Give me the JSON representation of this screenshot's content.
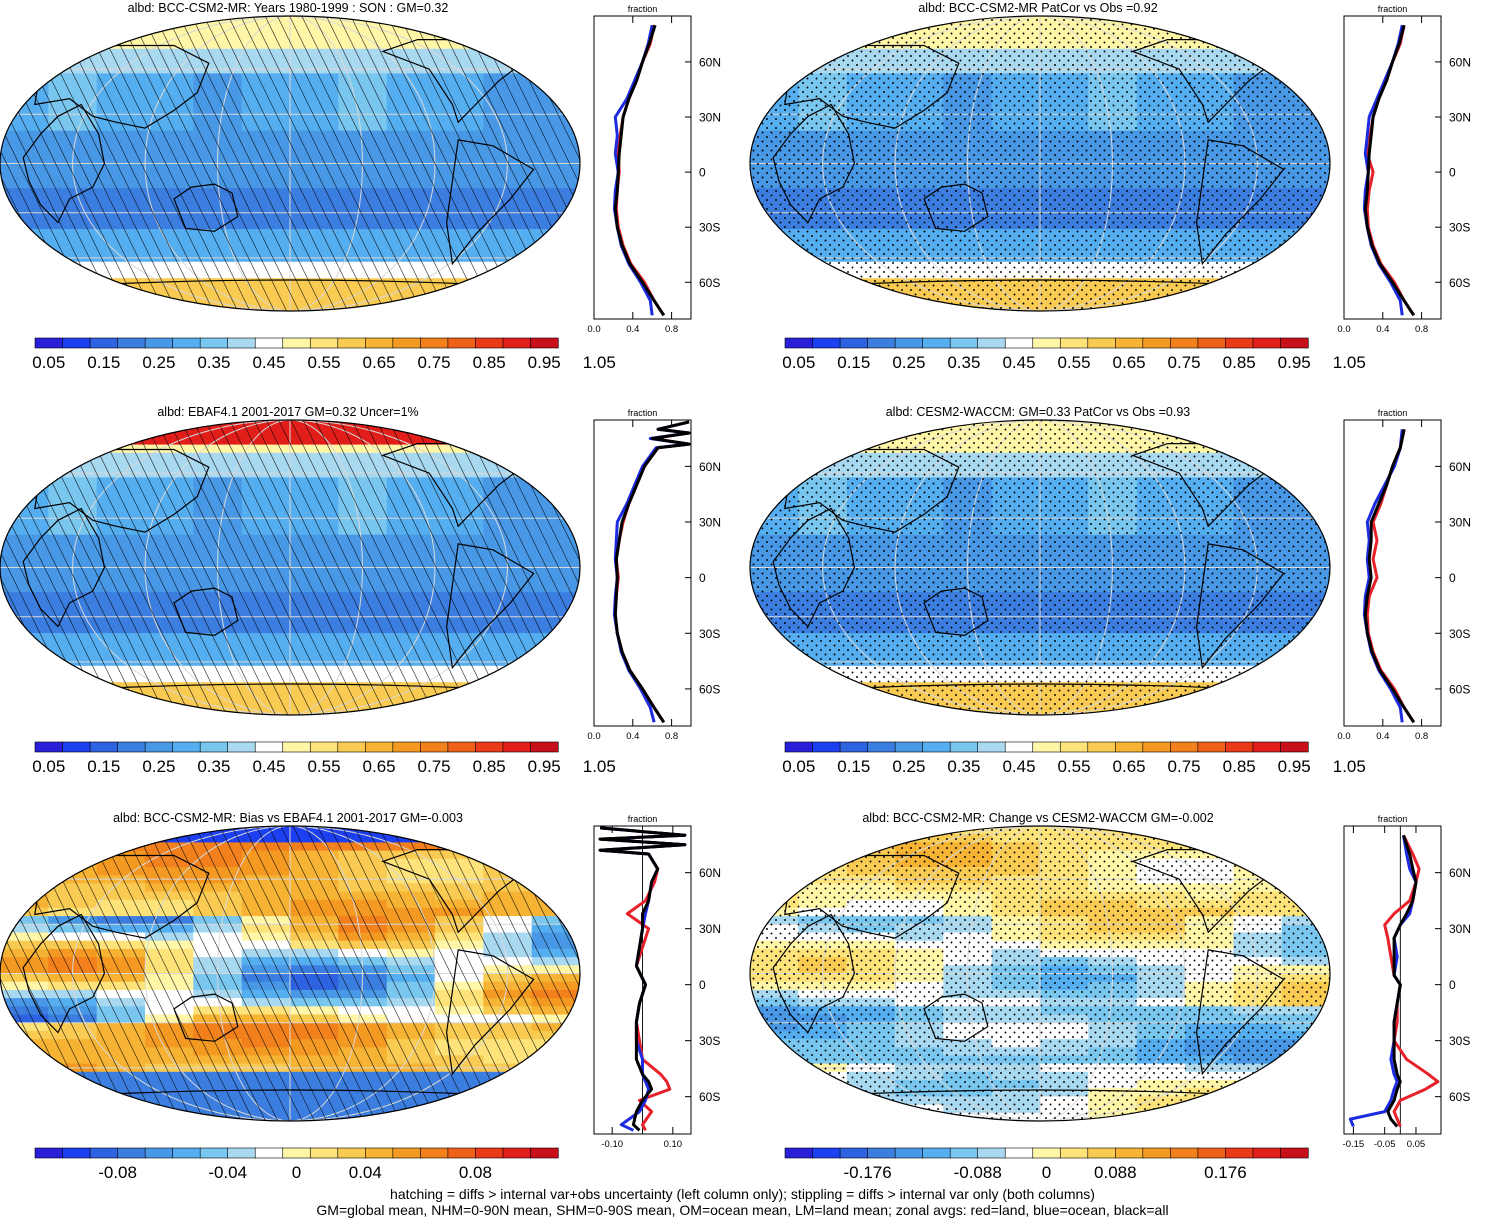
{
  "colors": {
    "land_line": "#e8202a",
    "ocean_line": "#1d2be0",
    "all_line": "#000000",
    "grid_line": "#d8d8d8",
    "map_palette": [
      "#2a1fd8",
      "#1c3ff0",
      "#2d62e0",
      "#3b7ee0",
      "#4898e6",
      "#55aef0",
      "#79c6ef",
      "#a9d8f1",
      "#ffffff",
      "#fff6a8",
      "#fde37a",
      "#f9cb52",
      "#f6b334",
      "#f49a22",
      "#f2801c",
      "#ef6018",
      "#ea3a18",
      "#e21e1a",
      "#c8101a"
    ]
  },
  "footer": {
    "line1": "hatching = diffs > internal var+obs uncertainty (left column only); stippling = diffs > internal var only (both columns)",
    "line2": "GM=global mean, NHM=0-90N mean, SHM=0-90S mean, OM=ocean mean, LM=land mean; zonal avgs: red=land, blue=ocean, black=all"
  },
  "chart_data": [
    {
      "type": "heatmap",
      "title": "albd: BCC-CSM2-MR: Years 1980-1999 : SON : GM=0.32",
      "overlay": "hatching",
      "colorbar_labels": [
        "0.05",
        "0.15",
        "0.25",
        "0.35",
        "0.45",
        "0.55",
        "0.65",
        "0.75",
        "0.85",
        "0.95",
        "1.05"
      ],
      "colorbar_range": [
        0.0,
        1.1
      ],
      "zonal": {
        "axis_title": "fraction",
        "xlim": [
          0.0,
          1.0
        ],
        "xticks": [
          0.0,
          0.4,
          0.8
        ],
        "xtick_labels": [
          "0.0",
          "0.4",
          "0.8"
        ],
        "ylim": [
          -80,
          85
        ],
        "yticks": [
          60,
          30,
          0,
          -30,
          -60
        ],
        "ytick_labels": [
          "60N",
          "30N",
          "0",
          "30S",
          "60S"
        ],
        "lat": [
          80,
          70,
          60,
          50,
          40,
          30,
          20,
          10,
          0,
          -10,
          -20,
          -30,
          -40,
          -50,
          -60,
          -70,
          -78
        ],
        "series": [
          {
            "values": [
              0.62,
              0.58,
              0.5,
              0.44,
              0.36,
              0.3,
              0.27,
              0.25,
              0.26,
              0.24,
              0.23,
              0.25,
              0.3,
              0.38,
              0.52,
              0.62,
              0.72
            ]
          },
          {
            "values": [
              0.6,
              0.56,
              0.5,
              0.42,
              0.34,
              0.22,
              0.24,
              0.22,
              0.25,
              0.22,
              0.21,
              0.24,
              0.28,
              0.36,
              0.48,
              0.58,
              0.6
            ]
          },
          {
            "values": [
              0.63,
              0.57,
              0.5,
              0.44,
              0.36,
              0.3,
              0.28,
              0.26,
              0.25,
              0.24,
              0.22,
              0.24,
              0.29,
              0.37,
              0.5,
              0.62,
              0.72
            ]
          }
        ]
      }
    },
    {
      "type": "heatmap",
      "title": "albd: BCC-CSM2-MR PatCor vs Obs =0.92",
      "overlay": "stippling",
      "colorbar_labels": [
        "0.05",
        "0.15",
        "0.25",
        "0.35",
        "0.45",
        "0.55",
        "0.65",
        "0.75",
        "0.85",
        "0.95",
        "1.05"
      ],
      "colorbar_range": [
        0.0,
        1.1
      ],
      "zonal": {
        "axis_title": "fraction",
        "xlim": [
          0.0,
          1.0
        ],
        "xticks": [
          0.0,
          0.4,
          0.8
        ],
        "xtick_labels": [
          "0.0",
          "0.4",
          "0.8"
        ],
        "ylim": [
          -80,
          85
        ],
        "yticks": [
          60,
          30,
          0,
          -30,
          -60
        ],
        "ytick_labels": [
          "60N",
          "30N",
          "0",
          "30S",
          "60S"
        ],
        "lat": [
          80,
          70,
          60,
          50,
          40,
          30,
          20,
          10,
          0,
          -10,
          -20,
          -30,
          -40,
          -50,
          -60,
          -70,
          -78
        ],
        "series": [
          {
            "values": [
              0.62,
              0.58,
              0.5,
              0.44,
              0.36,
              0.3,
              0.27,
              0.24,
              0.3,
              0.26,
              0.24,
              0.25,
              0.3,
              0.38,
              0.52,
              0.62,
              0.72
            ]
          },
          {
            "values": [
              0.6,
              0.56,
              0.5,
              0.42,
              0.34,
              0.26,
              0.24,
              0.22,
              0.25,
              0.22,
              0.21,
              0.24,
              0.28,
              0.36,
              0.48,
              0.58,
              0.6
            ]
          },
          {
            "values": [
              0.62,
              0.57,
              0.5,
              0.44,
              0.36,
              0.3,
              0.28,
              0.26,
              0.25,
              0.24,
              0.22,
              0.24,
              0.29,
              0.37,
              0.5,
              0.62,
              0.72
            ]
          }
        ]
      }
    },
    {
      "type": "heatmap",
      "title": "albd: EBAF4.1 2001-2017 GM=0.32 Uncer=1%",
      "overlay": "hatching",
      "colorbar_labels": [
        "0.05",
        "0.15",
        "0.25",
        "0.35",
        "0.45",
        "0.55",
        "0.65",
        "0.75",
        "0.85",
        "0.95",
        "1.05"
      ],
      "colorbar_range": [
        0.0,
        1.1
      ],
      "zonal": {
        "axis_title": "fraction",
        "xlim": [
          0.0,
          1.0
        ],
        "xticks": [
          0.0,
          0.4,
          0.8
        ],
        "xtick_labels": [
          "0.0",
          "0.4",
          "0.8"
        ],
        "ylim": [
          -80,
          85
        ],
        "yticks": [
          60,
          30,
          0,
          -30,
          -60
        ],
        "ytick_labels": [
          "60N",
          "30N",
          "0",
          "30S",
          "60S"
        ],
        "lat": [
          84,
          80,
          78,
          75,
          72,
          70,
          60,
          50,
          40,
          30,
          20,
          10,
          0,
          -10,
          -20,
          -30,
          -40,
          -50,
          -60,
          -70,
          -78
        ],
        "series": [
          {
            "values": [
              0.98,
              0.66,
              0.98,
              0.6,
              0.98,
              0.66,
              0.52,
              0.44,
              0.36,
              0.3,
              0.26,
              0.23,
              0.25,
              0.23,
              0.22,
              0.24,
              0.29,
              0.37,
              0.5,
              0.62,
              0.72
            ]
          },
          {
            "values": [
              0.98,
              0.66,
              0.98,
              0.58,
              0.98,
              0.64,
              0.5,
              0.42,
              0.34,
              0.24,
              0.23,
              0.22,
              0.24,
              0.22,
              0.21,
              0.24,
              0.28,
              0.36,
              0.48,
              0.58,
              0.62
            ]
          },
          {
            "values": [
              0.98,
              0.66,
              0.98,
              0.6,
              0.98,
              0.66,
              0.52,
              0.44,
              0.36,
              0.29,
              0.26,
              0.23,
              0.24,
              0.23,
              0.22,
              0.24,
              0.29,
              0.37,
              0.5,
              0.62,
              0.72
            ]
          }
        ]
      }
    },
    {
      "type": "heatmap",
      "title": "albd: CESM2-WACCM: GM=0.33 PatCor vs Obs =0.93",
      "overlay": "stippling",
      "colorbar_labels": [
        "0.05",
        "0.15",
        "0.25",
        "0.35",
        "0.45",
        "0.55",
        "0.65",
        "0.75",
        "0.85",
        "0.95",
        "1.05"
      ],
      "colorbar_range": [
        0.0,
        1.1
      ],
      "zonal": {
        "axis_title": "fraction",
        "xlim": [
          0.0,
          1.0
        ],
        "xticks": [
          0.0,
          0.4,
          0.8
        ],
        "xtick_labels": [
          "0.0",
          "0.4",
          "0.8"
        ],
        "ylim": [
          -80,
          85
        ],
        "yticks": [
          60,
          30,
          0,
          -30,
          -60
        ],
        "ytick_labels": [
          "60N",
          "30N",
          "0",
          "30S",
          "60S"
        ],
        "lat": [
          80,
          70,
          60,
          50,
          40,
          30,
          20,
          10,
          0,
          -10,
          -20,
          -30,
          -40,
          -50,
          -60,
          -70,
          -78
        ],
        "series": [
          {
            "values": [
              0.62,
              0.58,
              0.5,
              0.44,
              0.38,
              0.3,
              0.34,
              0.3,
              0.34,
              0.26,
              0.24,
              0.25,
              0.3,
              0.38,
              0.52,
              0.62,
              0.72
            ]
          },
          {
            "values": [
              0.6,
              0.58,
              0.52,
              0.42,
              0.32,
              0.24,
              0.26,
              0.24,
              0.26,
              0.22,
              0.21,
              0.24,
              0.28,
              0.36,
              0.48,
              0.58,
              0.6
            ]
          },
          {
            "values": [
              0.62,
              0.58,
              0.5,
              0.44,
              0.36,
              0.28,
              0.28,
              0.26,
              0.28,
              0.24,
              0.22,
              0.24,
              0.29,
              0.37,
              0.5,
              0.62,
              0.72
            ]
          }
        ]
      }
    },
    {
      "type": "heatmap",
      "title": "albd: BCC-CSM2-MR: Bias vs EBAF4.1 2001-2017  GM=-0.003",
      "overlay": "hatching",
      "colorbar_labels": [
        "-0.08",
        "-0.04",
        "0",
        "0.04",
        "0.08"
      ],
      "colorbar_range": [
        -0.12,
        0.12
      ],
      "zonal": {
        "axis_title": "fraction",
        "xlim": [
          -0.16,
          0.16
        ],
        "xticks": [
          -0.1,
          0.1
        ],
        "xtick_labels": [
          "-0.10",
          "0.10"
        ],
        "zero_line": true,
        "ylim": [
          -80,
          85
        ],
        "yticks": [
          60,
          30,
          0,
          -30,
          -60
        ],
        "ytick_labels": [
          "60N",
          "30N",
          "0",
          "30S",
          "60S"
        ],
        "lat": [
          84,
          80,
          78,
          75,
          72,
          70,
          62,
          55,
          45,
          38,
          30,
          20,
          10,
          0,
          -10,
          -20,
          -30,
          -40,
          -48,
          -52,
          -56,
          -62,
          -68,
          -75,
          -78
        ],
        "series": [
          {
            "values": [
              -0.14,
              0.14,
              -0.14,
              0.14,
              -0.14,
              0.02,
              0.05,
              0.04,
              0.01,
              -0.05,
              0.02,
              0.0,
              -0.02,
              0.01,
              -0.01,
              -0.02,
              -0.01,
              0.0,
              0.06,
              0.08,
              0.09,
              -0.01,
              0.03,
              0.0,
              0.01
            ]
          },
          {
            "values": [
              -0.14,
              0.14,
              -0.14,
              0.14,
              -0.14,
              0.02,
              0.05,
              0.03,
              0.02,
              0.01,
              0.0,
              -0.01,
              -0.02,
              0.01,
              -0.01,
              -0.02,
              -0.02,
              0.0,
              0.0,
              0.01,
              0.02,
              0.01,
              -0.01,
              -0.07,
              -0.03
            ]
          },
          {
            "values": [
              -0.14,
              0.14,
              -0.14,
              0.14,
              -0.14,
              0.02,
              0.05,
              0.03,
              0.02,
              0.0,
              0.0,
              -0.01,
              -0.02,
              0.01,
              -0.01,
              -0.02,
              -0.02,
              -0.02,
              0.0,
              0.02,
              0.03,
              0.0,
              -0.02,
              -0.03,
              -0.01
            ]
          }
        ]
      }
    },
    {
      "type": "heatmap",
      "title": "albd: BCC-CSM2-MR: Change vs CESM2-WACCM GM=-0.002",
      "overlay": "stippling",
      "colorbar_labels": [
        "-0.176",
        "-0.088",
        "0",
        "0.088",
        "0.176"
      ],
      "colorbar_range": [
        -0.26,
        0.26
      ],
      "zonal": {
        "axis_title": "fraction",
        "xlim": [
          -0.18,
          0.13
        ],
        "xticks": [
          -0.15,
          -0.05,
          0.05
        ],
        "xtick_labels": [
          "-0.15",
          "-0.05",
          "0.05"
        ],
        "zero_line": true,
        "ylim": [
          -80,
          85
        ],
        "yticks": [
          60,
          30,
          0,
          -30,
          -60
        ],
        "ytick_labels": [
          "60N",
          "30N",
          "0",
          "30S",
          "60S"
        ],
        "lat": [
          80,
          70,
          62,
          55,
          45,
          38,
          32,
          25,
          15,
          5,
          0,
          -10,
          -20,
          -30,
          -40,
          -48,
          -52,
          -56,
          -62,
          -68,
          -72,
          -76
        ],
        "series": [
          {
            "values": [
              0.01,
              0.04,
              0.06,
              0.05,
              0.03,
              -0.02,
              -0.05,
              -0.04,
              -0.03,
              -0.02,
              0.0,
              -0.01,
              -0.01,
              -0.02,
              0.02,
              0.09,
              0.12,
              0.08,
              0.0,
              -0.02,
              -0.01,
              0.0
            ]
          },
          {
            "values": [
              0.01,
              0.02,
              0.03,
              0.05,
              0.04,
              0.03,
              0.0,
              -0.02,
              -0.01,
              -0.02,
              0.0,
              -0.01,
              -0.02,
              -0.02,
              -0.03,
              -0.02,
              -0.01,
              -0.02,
              -0.03,
              -0.05,
              -0.16,
              -0.15
            ]
          },
          {
            "values": [
              0.01,
              0.03,
              0.04,
              0.05,
              0.04,
              0.02,
              0.0,
              -0.02,
              -0.02,
              -0.02,
              0.0,
              -0.01,
              -0.02,
              -0.02,
              -0.02,
              -0.01,
              0.0,
              -0.01,
              -0.02,
              -0.04,
              -0.03,
              -0.01
            ]
          }
        ]
      }
    }
  ]
}
